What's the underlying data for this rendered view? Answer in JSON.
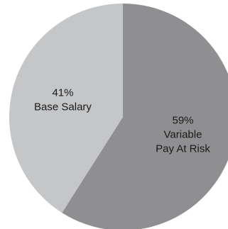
{
  "chart_data": {
    "type": "pie",
    "title": "",
    "slices": [
      {
        "label_lines": [
          "59%",
          "Variable",
          "Pay At Risk"
        ],
        "value": 59,
        "color": "#8f8f91"
      },
      {
        "label_lines": [
          "41%",
          "Base Salary"
        ],
        "value": 41,
        "color": "#c5c6c8"
      }
    ],
    "start_angle_deg": 0,
    "direction": "clockwise"
  }
}
